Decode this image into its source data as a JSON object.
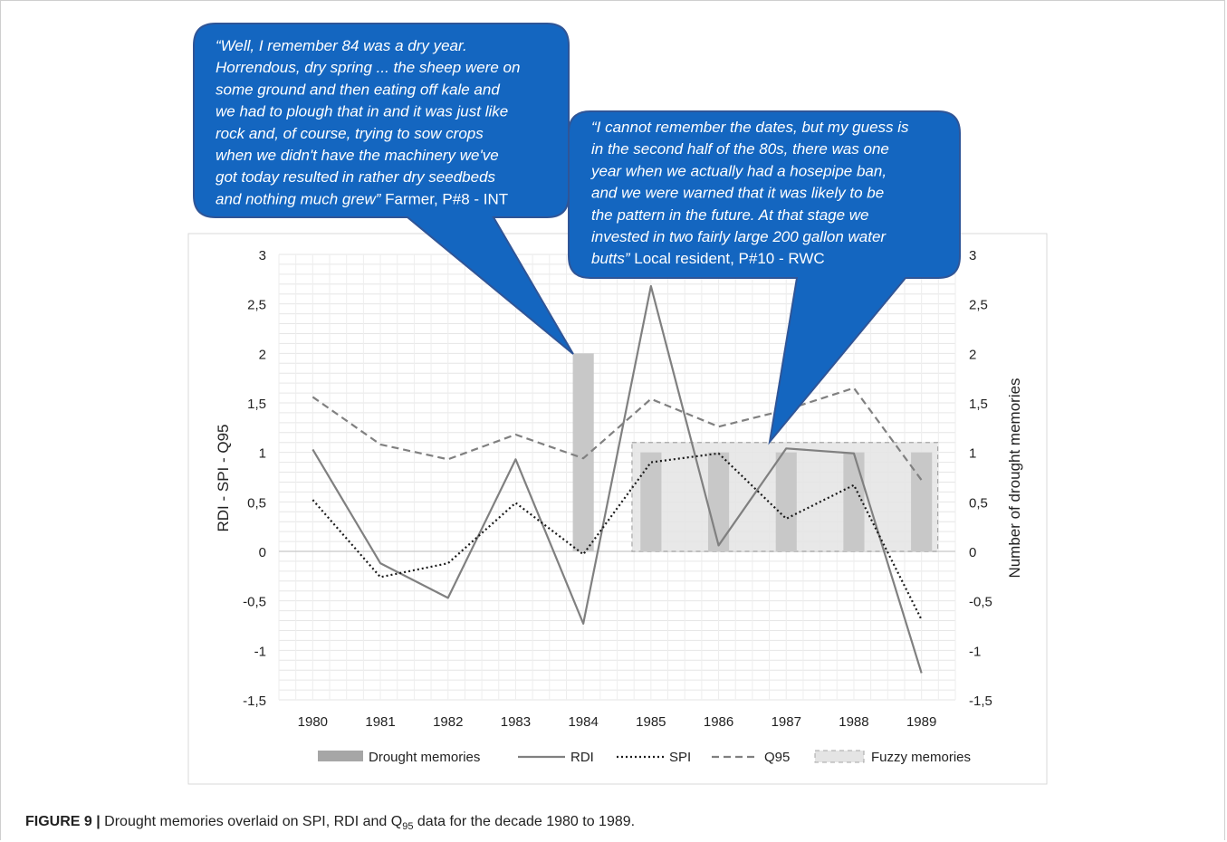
{
  "caption": {
    "label": "FIGURE 9 |",
    "text_before": " Drought memories overlaid on SPI, RDI and Q",
    "subscript": "95",
    "text_after": " data for the decade 1980 to 1989."
  },
  "callouts": [
    {
      "lines": [
        {
          "it": "“Well, I remember 84 was a dry year.",
          "rm": ""
        },
        {
          "it": "Horrendous, dry spring ... the sheep were on",
          "rm": ""
        },
        {
          "it": "some ground and then eating off kale and",
          "rm": ""
        },
        {
          "it": "we had to plough that in and it was just like",
          "rm": ""
        },
        {
          "it": "rock and, of course, trying to sow crops",
          "rm": ""
        },
        {
          "it": "when we didn't have the machinery we've",
          "rm": ""
        },
        {
          "it": "got today resulted in rather dry seedbeds",
          "rm": ""
        },
        {
          "it": "and nothing much grew”",
          "rm": " Farmer, P#8 - INT"
        }
      ]
    },
    {
      "lines": [
        {
          "it": "“I cannot remember the dates, but my guess is",
          "rm": ""
        },
        {
          "it": "in the second half of the 80s, there was one",
          "rm": ""
        },
        {
          "it": "year when we actually had a hosepipe ban,",
          "rm": ""
        },
        {
          "it": "and we were warned that it was likely to be",
          "rm": ""
        },
        {
          "it": "the pattern in the future. At that stage we",
          "rm": ""
        },
        {
          "it": "invested in two fairly large 200 gallon water",
          "rm": ""
        },
        {
          "it": "butts”",
          "rm": " Local resident, P#10 - RWC"
        }
      ]
    }
  ],
  "chart_data": {
    "type": "line",
    "ylabel": "RDI - SPI - Q95",
    "y2label": "Number of drought memories",
    "ylim": [
      -1.5,
      3
    ],
    "yticks": [
      "3",
      "2,5",
      "2",
      "1,5",
      "1",
      "0,5",
      "0",
      "-0,5",
      "-1",
      "-1,5"
    ],
    "ytick_values": [
      3,
      2.5,
      2,
      1.5,
      1,
      0.5,
      0,
      -0.5,
      -1,
      -1.5
    ],
    "categories": [
      "1980",
      "1981",
      "1982",
      "1983",
      "1984",
      "1985",
      "1986",
      "1987",
      "1988",
      "1989"
    ],
    "grid": true,
    "legend_position": "bottom",
    "bars": {
      "name": "Drought memories",
      "values": [
        0,
        0,
        0,
        0,
        2,
        1,
        1,
        1,
        1,
        1
      ],
      "colors": [
        "#a6a6a6",
        "#c8c8c8",
        "#c8c8c8",
        "#c8c8c8",
        "#c8c8c8",
        "#c8c8c8",
        "#c8c8c8",
        "#c8c8c8",
        "#c8c8c8",
        "#c8c8c8"
      ]
    },
    "fuzzy_region": {
      "name": "Fuzzy memories",
      "from": "1985",
      "to": "1989",
      "value": 1.1
    },
    "series": [
      {
        "name": "RDI",
        "style": "solid",
        "color": "#808080",
        "values": [
          1.03,
          -0.12,
          -0.47,
          0.93,
          -0.73,
          2.68,
          0.06,
          1.04,
          0.99,
          -1.23
        ]
      },
      {
        "name": "SPI",
        "style": "dotted",
        "color": "#1a1a1a",
        "values": [
          0.52,
          -0.26,
          -0.12,
          0.49,
          -0.03,
          0.9,
          0.99,
          0.33,
          0.67,
          -0.69
        ]
      },
      {
        "name": "Q95",
        "style": "dashed",
        "color": "#808080",
        "values": [
          1.56,
          1.08,
          0.93,
          1.18,
          0.94,
          1.54,
          1.26,
          1.43,
          1.65,
          0.72
        ]
      }
    ],
    "legend": [
      "Drought memories",
      "RDI",
      "SPI",
      "Q95",
      "Fuzzy memories"
    ]
  },
  "colors": {
    "callout_fill": "#1466c0",
    "callout_stroke": "#2f5597",
    "callout_text": "#ffffff"
  }
}
